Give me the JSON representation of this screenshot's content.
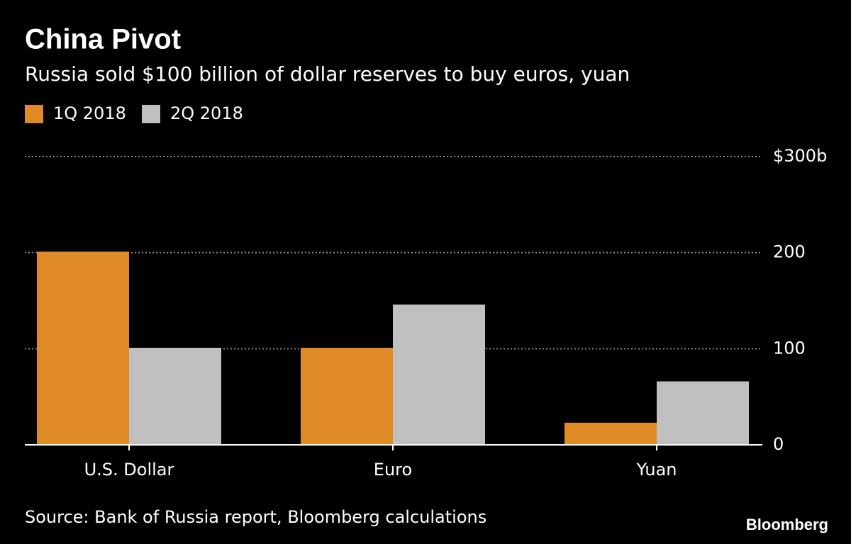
{
  "chart_data": {
    "type": "bar",
    "title": "China Pivot",
    "subtitle": "Russia sold $100 billion of dollar reserves to buy euros, yuan",
    "categories": [
      "U.S. Dollar",
      "Euro",
      "Yuan"
    ],
    "series": [
      {
        "name": "1Q 2018",
        "color": "#e08b26",
        "values": [
          201,
          101,
          23
        ]
      },
      {
        "name": "2Q 2018",
        "color": "#c0c0c0",
        "values": [
          101,
          146,
          66
        ]
      }
    ],
    "ylim": [
      0,
      300
    ],
    "yticks": [
      0,
      100,
      200,
      {
        "value": 300,
        "label": "$300b"
      }
    ],
    "grid": true,
    "source": "Source: Bank of Russia report, Bloomberg calculations",
    "brand": "Bloomberg"
  }
}
